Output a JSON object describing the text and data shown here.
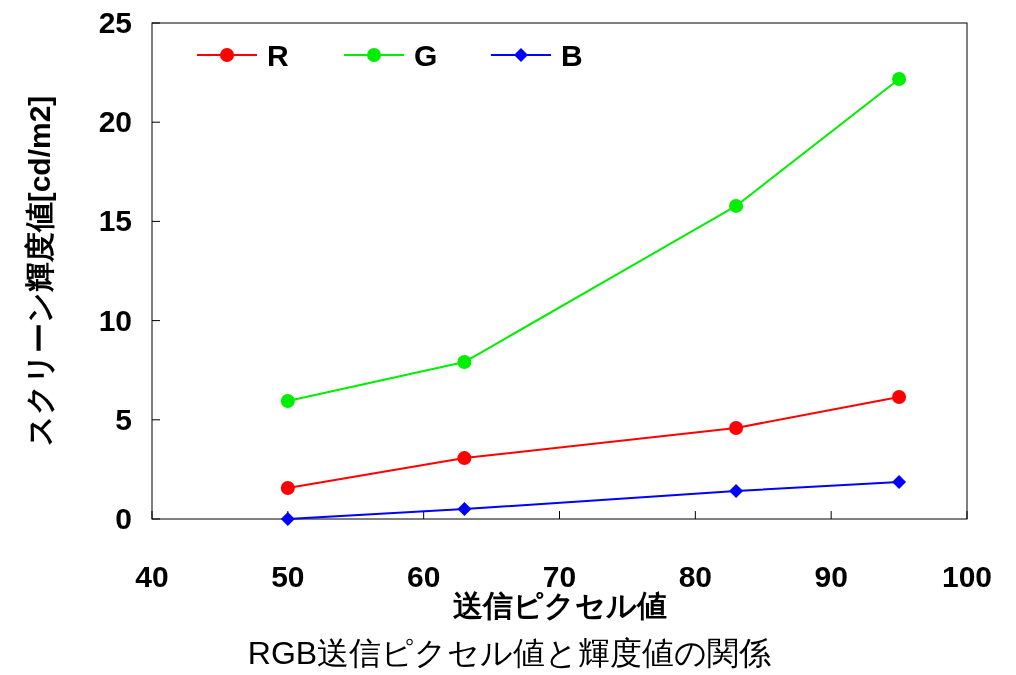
{
  "chart_data": {
    "type": "line",
    "title": "RGB送信ピクセル値と輝度値の関係",
    "xlabel": "送信ピクセル値",
    "ylabel": "スクリーン輝度値[cd/m2]",
    "xlim": [
      40,
      100
    ],
    "xticks": [
      40,
      50,
      60,
      70,
      80,
      90,
      100
    ],
    "ylim": [
      0,
      25
    ],
    "yticks": [
      0,
      5,
      10,
      15,
      20,
      25
    ],
    "grid": false,
    "legend": "top left",
    "line_style": "solid",
    "series": [
      {
        "name": "R",
        "color": "#ff0000",
        "marker": "circle",
        "x": [
          50,
          63,
          83,
          95
        ],
        "values": [
          1.56,
          3.07,
          4.59,
          6.15
        ]
      },
      {
        "name": "G",
        "color": "#00ee00",
        "marker": "circle",
        "x": [
          50,
          63,
          83,
          95
        ],
        "values": [
          5.95,
          7.91,
          15.78,
          22.18
        ]
      },
      {
        "name": "B",
        "color": "#0000ff",
        "marker": "diamond",
        "x": [
          50,
          63,
          83,
          95
        ],
        "values": [
          0,
          0.5,
          1.41,
          1.86
        ]
      }
    ]
  }
}
